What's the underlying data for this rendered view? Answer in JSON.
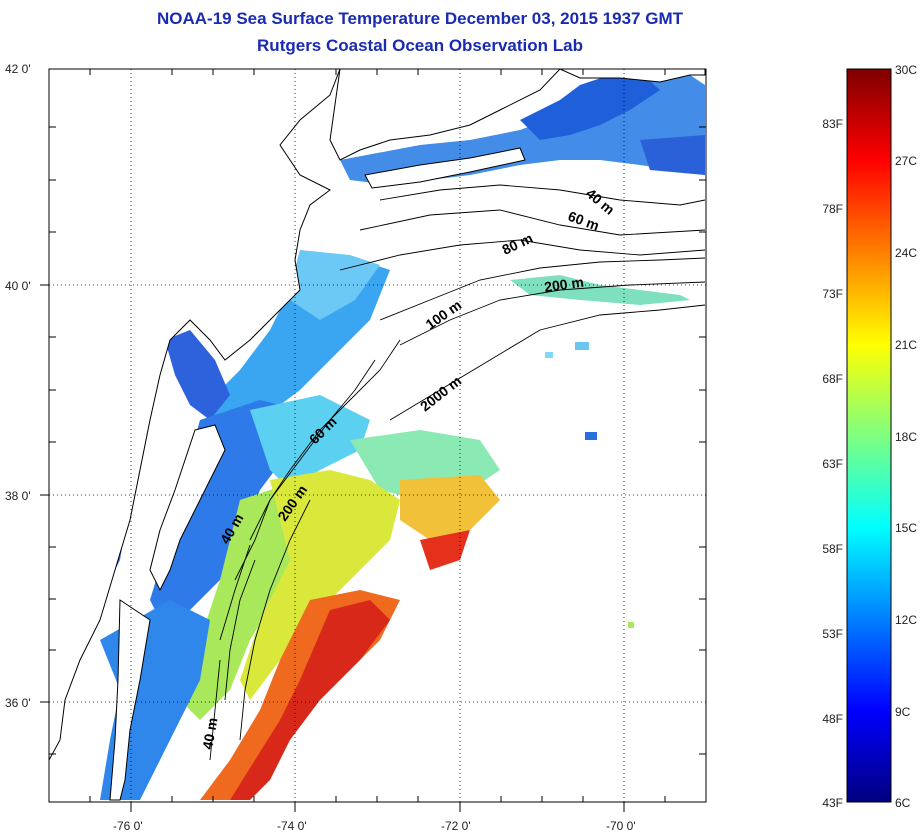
{
  "titles": {
    "line1": "NOAA-19 Sea Surface Temperature December 03, 2015 1937 GMT",
    "line2": "Rutgers Coastal Ocean Observation Lab"
  },
  "map": {
    "lat_ticks": [
      "42 0'",
      "40 0'",
      "38 0'",
      "36 0'"
    ],
    "lon_ticks": [
      "-76 0'",
      "-74 0'",
      "-72 0'",
      "-70 0'"
    ],
    "lat_range": [
      35,
      42
    ],
    "lon_range": [
      -77,
      -69
    ],
    "grid": "dotted",
    "contour_labels": [
      "40 m",
      "60 m",
      "80 m",
      "200 m",
      "100 m",
      "2000 m",
      "60 m",
      "200 m",
      "40 m",
      "40 m"
    ]
  },
  "colorbar": {
    "celsius_labels": [
      "30C",
      "27C",
      "24C",
      "21C",
      "18C",
      "15C",
      "12C",
      "9C",
      "6C"
    ],
    "fahrenheit_labels": [
      "83F",
      "78F",
      "73F",
      "68F",
      "63F",
      "58F",
      "53F",
      "48F",
      "43F"
    ],
    "colormap": "jet",
    "range_c": [
      6,
      30
    ]
  },
  "colors": {
    "title": "#1a2bb0",
    "land": "#ffffff",
    "coast": "#000000"
  }
}
